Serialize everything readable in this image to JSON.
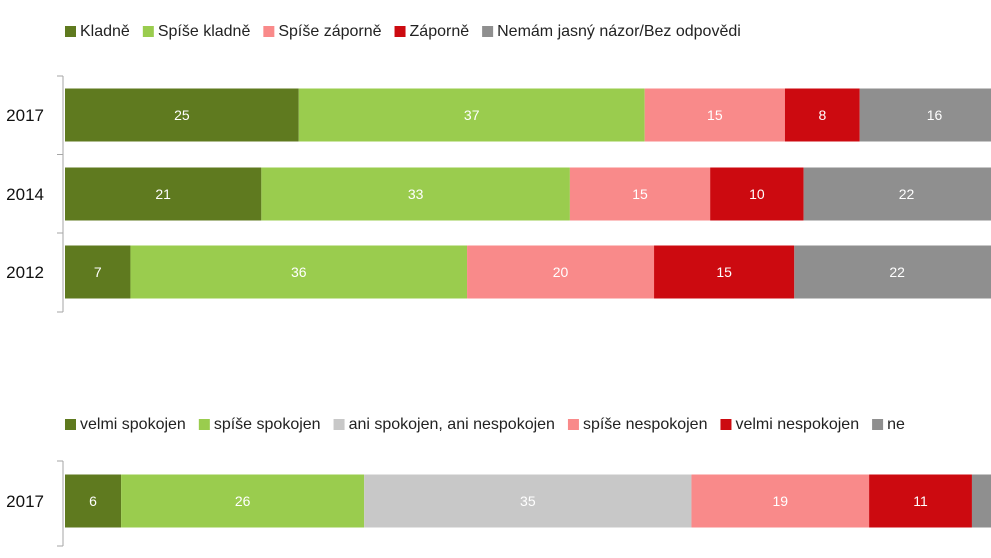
{
  "chart_data": [
    {
      "type": "bar",
      "orientation": "horizontal",
      "stacked": true,
      "title": "",
      "xlabel": "",
      "ylabel": "",
      "categories": [
        "2017",
        "2014",
        "2012"
      ],
      "legend_position": "top-left",
      "series": [
        {
          "name": "Kladně",
          "color": "#5f7a1f",
          "values": [
            25,
            21,
            7
          ]
        },
        {
          "name": "Spíše kladně",
          "color": "#9acc4e",
          "values": [
            37,
            33,
            36
          ]
        },
        {
          "name": "Spíše záporně",
          "color": "#f98a8a",
          "values": [
            15,
            15,
            20
          ]
        },
        {
          "name": "Záporně",
          "color": "#cc0a10",
          "values": [
            8,
            10,
            15
          ]
        },
        {
          "name": "Nemám jasný názor/Bez odpovědi",
          "color": "#8f8f8f",
          "values": [
            16,
            22,
            22
          ]
        }
      ]
    },
    {
      "type": "bar",
      "orientation": "horizontal",
      "stacked": true,
      "title": "",
      "xlabel": "",
      "ylabel": "",
      "categories": [
        "2017"
      ],
      "legend_position": "top-left",
      "series": [
        {
          "name": "velmi spokojen",
          "color": "#5f7a1f",
          "values": [
            6
          ]
        },
        {
          "name": "spíše spokojen",
          "color": "#9acc4e",
          "values": [
            26
          ]
        },
        {
          "name": "ani spokojen, ani nespokojen",
          "color": "#c8c8c8",
          "values": [
            35
          ]
        },
        {
          "name": "spíše nespokojen",
          "color": "#f98a8a",
          "values": [
            19
          ]
        },
        {
          "name": "velmi nespokojen",
          "color": "#cc0a10",
          "values": [
            11
          ]
        },
        {
          "name": "ne",
          "color": "#8f8f8f",
          "values": [
            3
          ]
        }
      ]
    }
  ]
}
